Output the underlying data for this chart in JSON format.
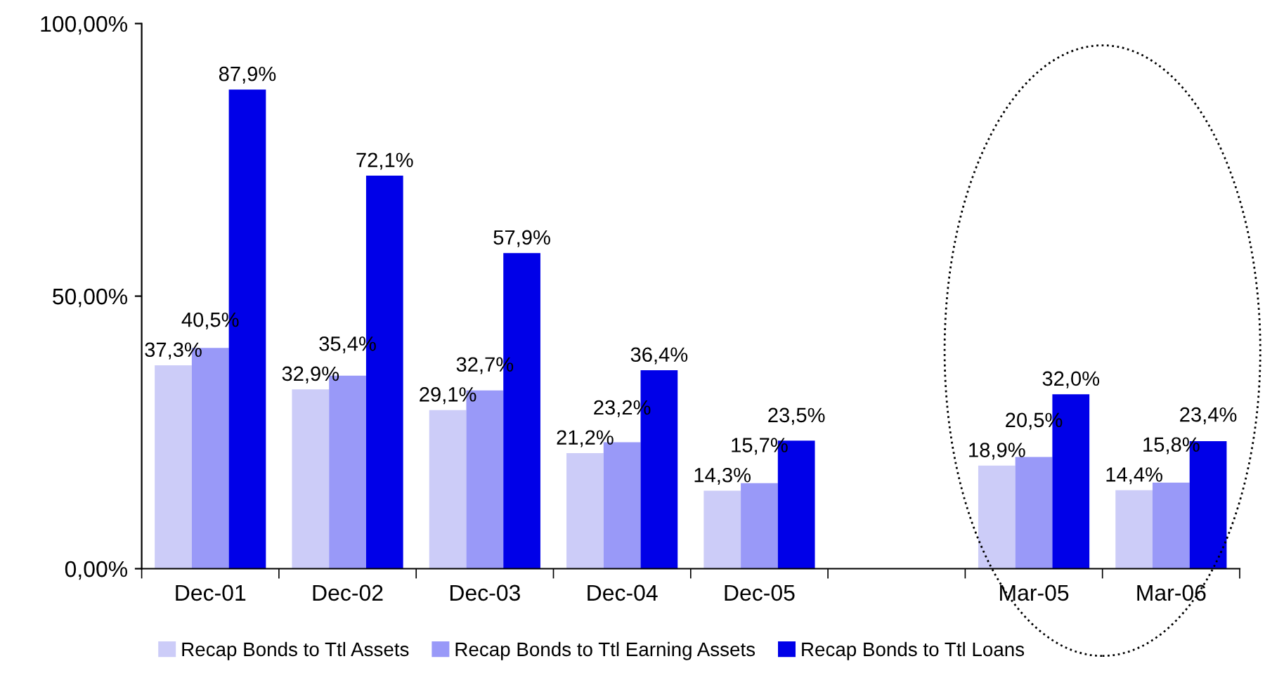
{
  "chart_data": {
    "type": "bar",
    "categories": [
      "Dec-01",
      "Dec-02",
      "Dec-03",
      "Dec-04",
      "Dec-05",
      null,
      "Mar-05",
      "Mar-06"
    ],
    "series": [
      {
        "name": "Recap Bonds to Ttl Assets",
        "color": "#ccccf8",
        "values": [
          37.3,
          32.9,
          29.1,
          21.2,
          14.3,
          null,
          18.9,
          14.4
        ],
        "value_labels": [
          "37,3%",
          "32,9%",
          "29,1%",
          "21,2%",
          "14,3%",
          null,
          "18,9%",
          "14,4%"
        ]
      },
      {
        "name": "Recap Bonds to Ttl Earning Assets",
        "color": "#9999f8",
        "values": [
          40.5,
          35.4,
          32.7,
          23.2,
          15.7,
          null,
          20.5,
          15.8
        ],
        "value_labels": [
          "40,5%",
          "35,4%",
          "32,7%",
          "23,2%",
          "15,7%",
          null,
          "20,5%",
          "15,8%"
        ]
      },
      {
        "name": "Recap Bonds to Ttl Loans",
        "color": "#0000e8",
        "values": [
          87.9,
          72.1,
          57.9,
          36.4,
          23.5,
          null,
          32.0,
          23.4
        ],
        "value_labels": [
          "87,9%",
          "72,1%",
          "57,9%",
          "36,4%",
          "23,5%",
          null,
          "32,0%",
          "23,4%"
        ]
      }
    ],
    "ylim": [
      0,
      100
    ],
    "yticks": [
      {
        "value": 0,
        "label": "0,00%"
      },
      {
        "value": 50,
        "label": "50,00%"
      },
      {
        "value": 100,
        "label": "100,00%"
      }
    ],
    "legend": "bottom"
  }
}
